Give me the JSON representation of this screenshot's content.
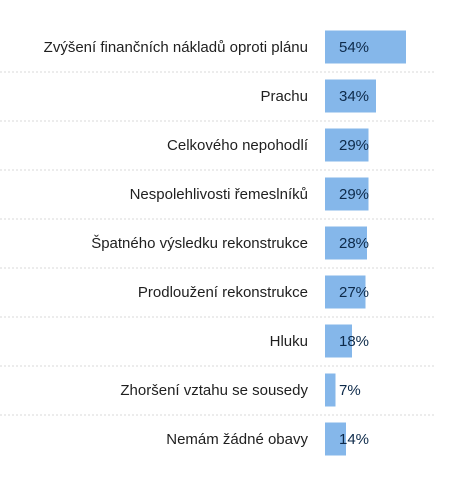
{
  "chart_data": {
    "type": "bar",
    "orientation": "horizontal",
    "categories": [
      "Zvýšení finančních nákladů oproti plánu",
      "Prachu",
      "Celkového nepohodlí",
      "Nespolehlivosti řemeslníků",
      "Špatného výsledku rekonstrukce",
      "Prodloužení rekonstrukce",
      "Hluku",
      "Zhoršení vztahu se sousedy",
      "Nemám žádné obavy"
    ],
    "values": [
      54,
      34,
      29,
      29,
      28,
      27,
      18,
      7,
      14
    ],
    "value_labels": [
      "54%",
      "34%",
      "29%",
      "29%",
      "28%",
      "27%",
      "18%",
      "7%",
      "14%"
    ],
    "unit": "%",
    "xlim": [
      0,
      100
    ],
    "grid": false,
    "legend": "none",
    "bar_color": "#85b7ea"
  }
}
